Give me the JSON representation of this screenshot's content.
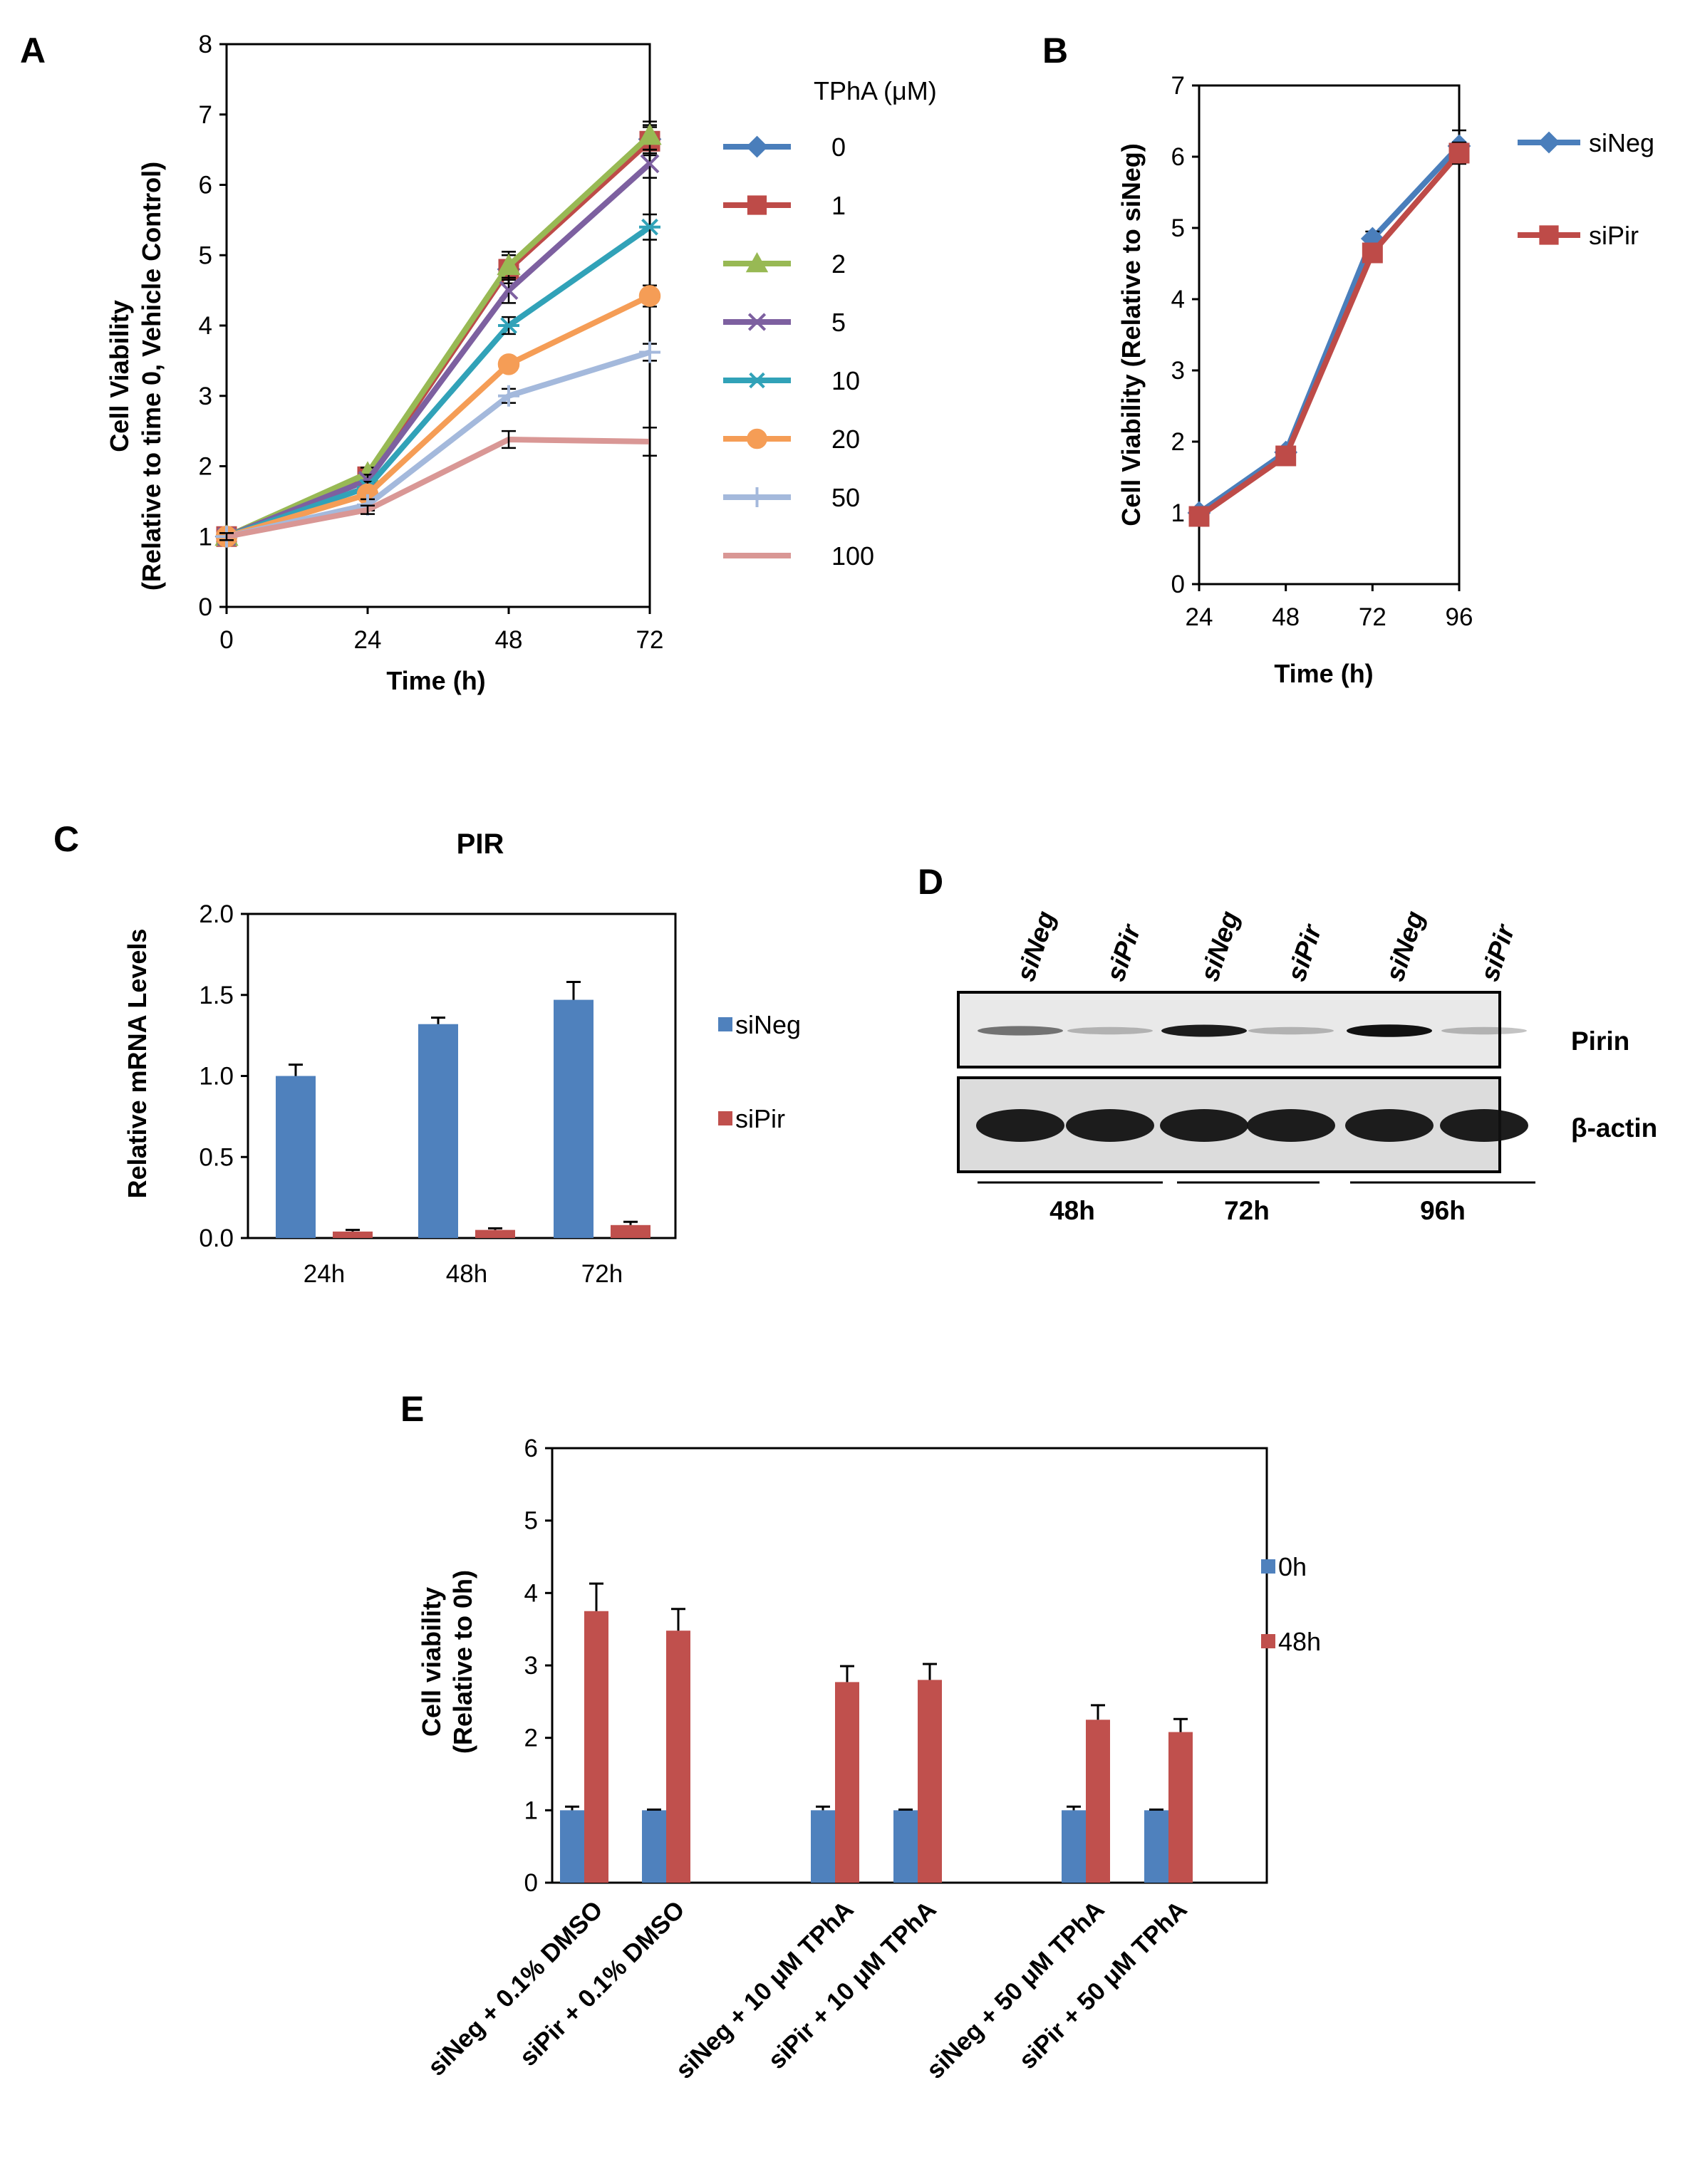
{
  "chart_data": [
    {
      "panel": "A",
      "type": "line",
      "title": "",
      "xlabel": "Time (h)",
      "ylabel_lines": [
        "Cell Viability",
        "(Relative to time 0, Vehicle Control)"
      ],
      "x": [
        0,
        24,
        48,
        72
      ],
      "xticks": [
        "0",
        "24",
        "48",
        "72"
      ],
      "ylim": [
        0,
        8
      ],
      "yticks": [
        "0",
        "1",
        "2",
        "3",
        "4",
        "5",
        "6",
        "7",
        "8"
      ],
      "legend_title": "TPhA (μM)",
      "series": [
        {
          "name": "0",
          "color": "#4a7ebb",
          "marker": "diamond",
          "values": [
            1.0,
            1.85,
            4.8,
            6.65
          ],
          "errors": [
            0.05,
            0.08,
            0.2,
            0.2
          ]
        },
        {
          "name": "1",
          "color": "#be4b48",
          "marker": "square",
          "values": [
            1.0,
            1.85,
            4.8,
            6.62
          ],
          "errors": [
            0.05,
            0.08,
            0.2,
            0.2
          ]
        },
        {
          "name": "2",
          "color": "#98b954",
          "marker": "triangle",
          "values": [
            1.0,
            1.9,
            4.85,
            6.7
          ],
          "errors": [
            0.05,
            0.08,
            0.2,
            0.2
          ]
        },
        {
          "name": "5",
          "color": "#7d60a0",
          "marker": "x",
          "values": [
            1.0,
            1.8,
            4.5,
            6.3
          ],
          "errors": [
            0.05,
            0.08,
            0.18,
            0.2
          ]
        },
        {
          "name": "10",
          "color": "#31a2b8",
          "marker": "star",
          "values": [
            1.0,
            1.7,
            4.0,
            5.4
          ],
          "errors": [
            0.05,
            0.08,
            0.12,
            0.18
          ]
        },
        {
          "name": "20",
          "color": "#f59d56",
          "marker": "circle",
          "values": [
            1.0,
            1.6,
            3.45,
            4.42
          ],
          "errors": [
            0.05,
            0.08,
            0.1,
            0.15
          ]
        },
        {
          "name": "50",
          "color": "#a4b9dc",
          "marker": "plus",
          "values": [
            1.0,
            1.45,
            3.0,
            3.62
          ],
          "errors": [
            0.05,
            0.08,
            0.1,
            0.12
          ]
        },
        {
          "name": "100",
          "color": "#d99795",
          "marker": "none",
          "values": [
            1.0,
            1.38,
            2.38,
            2.35
          ],
          "errors": [
            0.05,
            0.06,
            0.12,
            0.2
          ]
        }
      ]
    },
    {
      "panel": "B",
      "type": "line",
      "title": "",
      "xlabel": "Time (h)",
      "ylabel_lines": [
        "Cell Viability (Relative to siNeg)"
      ],
      "x": [
        24,
        48,
        72,
        96
      ],
      "xticks": [
        "24",
        "48",
        "72",
        "96"
      ],
      "ylim": [
        0,
        7
      ],
      "yticks": [
        "0",
        "1",
        "2",
        "3",
        "4",
        "5",
        "6",
        "7"
      ],
      "series": [
        {
          "name": "siNeg",
          "color": "#4a7ebb",
          "marker": "diamond",
          "values": [
            1.0,
            1.85,
            4.85,
            6.15
          ],
          "errors": [
            0.03,
            0.05,
            0.1,
            0.22
          ]
        },
        {
          "name": "siPir",
          "color": "#be4b48",
          "marker": "square",
          "values": [
            0.95,
            1.8,
            4.65,
            6.05
          ],
          "errors": [
            0.03,
            0.05,
            0.1,
            0.15
          ]
        }
      ]
    },
    {
      "panel": "C",
      "type": "bar",
      "title": "PIR",
      "xlabel": "",
      "ylabel_lines": [
        "Relative mRNA Levels"
      ],
      "categories": [
        "24h",
        "48h",
        "72h"
      ],
      "ylim": [
        0,
        2.0
      ],
      "yticks": [
        "0.0",
        "0.5",
        "1.0",
        "1.5",
        "2.0"
      ],
      "series": [
        {
          "name": "siNeg",
          "color": "#4f81bd",
          "values": [
            1.0,
            1.32,
            1.47
          ],
          "errors": [
            0.07,
            0.04,
            0.11
          ]
        },
        {
          "name": "siPir",
          "color": "#c0504d",
          "values": [
            0.04,
            0.05,
            0.08
          ],
          "errors": [
            0.01,
            0.01,
            0.02
          ]
        }
      ]
    },
    {
      "panel": "E",
      "type": "bar",
      "title": "",
      "xlabel": "",
      "ylabel_lines": [
        "Cell viability",
        "(Relative to 0h)"
      ],
      "categories": [
        "siNeg + 0.1% DMSO",
        "siPir + 0.1% DMSO",
        "siNeg + 10 μM TPhA",
        "siPir + 10 μM TPhA",
        "siNeg + 50 μM TPhA",
        "siPir + 50 μM TPhA"
      ],
      "ylim": [
        0,
        6
      ],
      "yticks": [
        "0",
        "1",
        "2",
        "3",
        "4",
        "5",
        "6"
      ],
      "series": [
        {
          "name": "0h",
          "color": "#4f81bd",
          "values": [
            1.0,
            1.0,
            1.0,
            1.0,
            1.0,
            1.0
          ],
          "errors": [
            0.05,
            0.01,
            0.05,
            0.01,
            0.05,
            0.01
          ]
        },
        {
          "name": "48h",
          "color": "#c0504d",
          "values": [
            3.75,
            3.48,
            2.77,
            2.8,
            2.25,
            2.08
          ],
          "errors": [
            0.38,
            0.3,
            0.22,
            0.22,
            0.2,
            0.18
          ]
        }
      ]
    }
  ],
  "blot": {
    "panel": "D",
    "lanes": [
      "siNeg",
      "siPir",
      "siNeg",
      "siPir",
      "siNeg",
      "siPir"
    ],
    "rows": [
      {
        "label": "Pirin",
        "intensities": [
          0.55,
          0.25,
          0.95,
          0.25,
          1.0,
          0.25
        ]
      },
      {
        "label": "β-actin",
        "intensities": [
          1.0,
          1.0,
          1.0,
          1.0,
          1.0,
          1.0
        ]
      }
    ],
    "groups": [
      "48h",
      "72h",
      "96h"
    ]
  }
}
